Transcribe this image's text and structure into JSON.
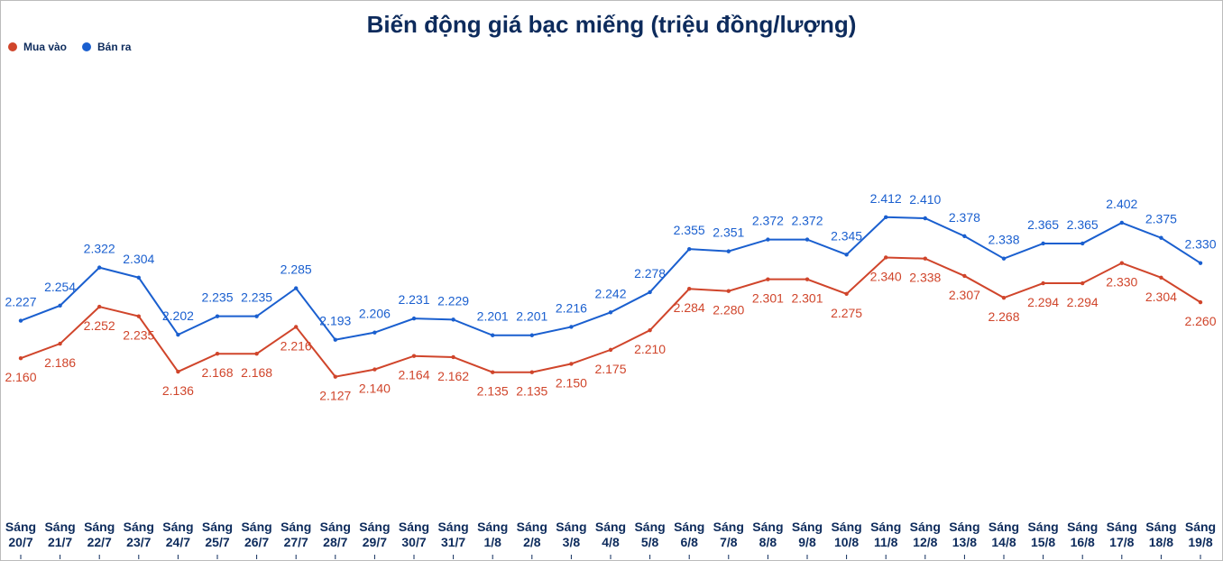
{
  "chart_data": {
    "type": "line",
    "title": "Biến động giá bạc miếng (triệu đồng/lượng)",
    "categories": [
      "Sáng 20/7",
      "Sáng 21/7",
      "Sáng 22/7",
      "Sáng 23/7",
      "Sáng 24/7",
      "Sáng 25/7",
      "Sáng 26/7",
      "Sáng 27/7",
      "Sáng 28/7",
      "Sáng 29/7",
      "Sáng 30/7",
      "Sáng 31/7",
      "Sáng 1/8",
      "Sáng 2/8",
      "Sáng 3/8",
      "Sáng 4/8",
      "Sáng 5/8",
      "Sáng 6/8",
      "Sáng 7/8",
      "Sáng 8/8",
      "Sáng 9/8",
      "Sáng 10/8",
      "Sáng 11/8",
      "Sáng 12/8",
      "Sáng 13/8",
      "Sáng 14/8",
      "Sáng 15/8",
      "Sáng 16/8",
      "Sáng 17/8",
      "Sáng 18/8",
      "Sáng 19/8"
    ],
    "series": [
      {
        "name": "Mua vào",
        "color": "#d0452b",
        "label_position": "below",
        "values": [
          2.16,
          2.186,
          2.252,
          2.235,
          2.136,
          2.168,
          2.168,
          2.216,
          2.127,
          2.14,
          2.164,
          2.162,
          2.135,
          2.135,
          2.15,
          2.175,
          2.21,
          2.284,
          2.28,
          2.301,
          2.301,
          2.275,
          2.34,
          2.338,
          2.307,
          2.268,
          2.294,
          2.294,
          2.33,
          2.304,
          2.26
        ],
        "value_labels": [
          "2.160",
          "2.186",
          "2.252",
          "2.235",
          "2.136",
          "2.168",
          "2.168",
          "2.216",
          "2.127",
          "2.140",
          "2.164",
          "2.162",
          "2.135",
          "2.135",
          "2.150",
          "2.175",
          "2.210",
          "2.284",
          "2.280",
          "2.301",
          "2.301",
          "2.275",
          "2.340",
          "2.338",
          "2.307",
          "2.268",
          "2.294",
          "2.294",
          "2.330",
          "2.304",
          "2.260"
        ]
      },
      {
        "name": "Bán ra",
        "color": "#1a5fcf",
        "label_position": "above",
        "values": [
          2.227,
          2.254,
          2.322,
          2.304,
          2.202,
          2.235,
          2.235,
          2.285,
          2.193,
          2.206,
          2.231,
          2.229,
          2.201,
          2.201,
          2.216,
          2.242,
          2.278,
          2.355,
          2.351,
          2.372,
          2.372,
          2.345,
          2.412,
          2.41,
          2.378,
          2.338,
          2.365,
          2.365,
          2.402,
          2.375,
          2.33
        ],
        "value_labels": [
          "2.227",
          "2.254",
          "2.322",
          "2.304",
          "2.202",
          "2.235",
          "2.235",
          "2.285",
          "2.193",
          "2.206",
          "2.231",
          "2.229",
          "2.201",
          "2.201",
          "2.216",
          "2.242",
          "2.278",
          "2.355",
          "2.351",
          "2.372",
          "2.372",
          "2.345",
          "2.412",
          "2.410",
          "2.378",
          "2.338",
          "2.365",
          "2.365",
          "2.402",
          "2.375",
          "2.330"
        ]
      }
    ],
    "ylim": [
      1.88,
      2.7
    ],
    "legend": "top-left"
  }
}
